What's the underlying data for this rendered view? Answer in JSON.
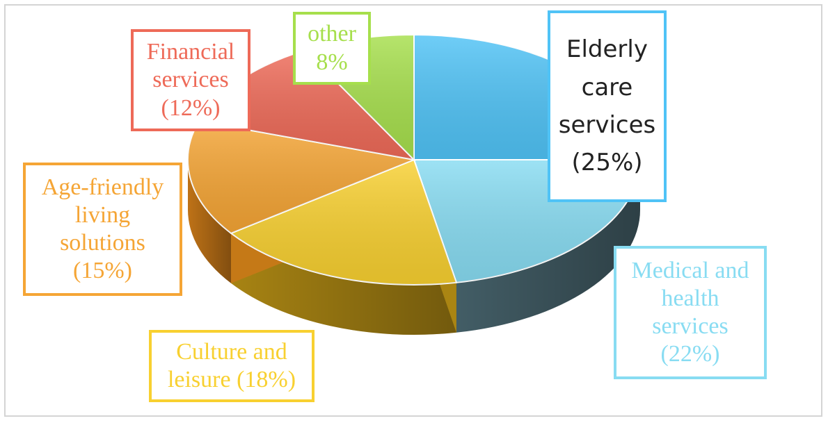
{
  "chart_data": {
    "type": "pie",
    "style": "3d-exploded",
    "slices": [
      {
        "key": "elderly",
        "label_lines": [
          "Elderly",
          "care",
          "services",
          "(25%)"
        ],
        "value": 25,
        "color": "#50c3f6",
        "side": "#3b6f80"
      },
      {
        "key": "medical",
        "label_lines": [
          "Medical and",
          "health",
          "services",
          "(22%)"
        ],
        "value": 22,
        "color": "#88dcf2",
        "side": "#46626b"
      },
      {
        "key": "culture",
        "label_lines": [
          "Culture and",
          "leisure (18%)"
        ],
        "value": 18,
        "color": "#f8d030",
        "side": "#b08a14"
      },
      {
        "key": "living",
        "label_lines": [
          "Age-friendly",
          "living",
          "solutions",
          "(15%)"
        ],
        "value": 15,
        "color": "#f5a535",
        "side": "#c87818"
      },
      {
        "key": "financial",
        "label_lines": [
          "Financial",
          "services",
          "(12%)"
        ],
        "value": 12,
        "color": "#ee6a58",
        "side": "#b8473a"
      },
      {
        "key": "other",
        "label_lines": [
          "other",
          "8%"
        ],
        "value": 8,
        "color": "#a6df4c",
        "side": "#7aa832"
      }
    ],
    "legend": "none"
  }
}
